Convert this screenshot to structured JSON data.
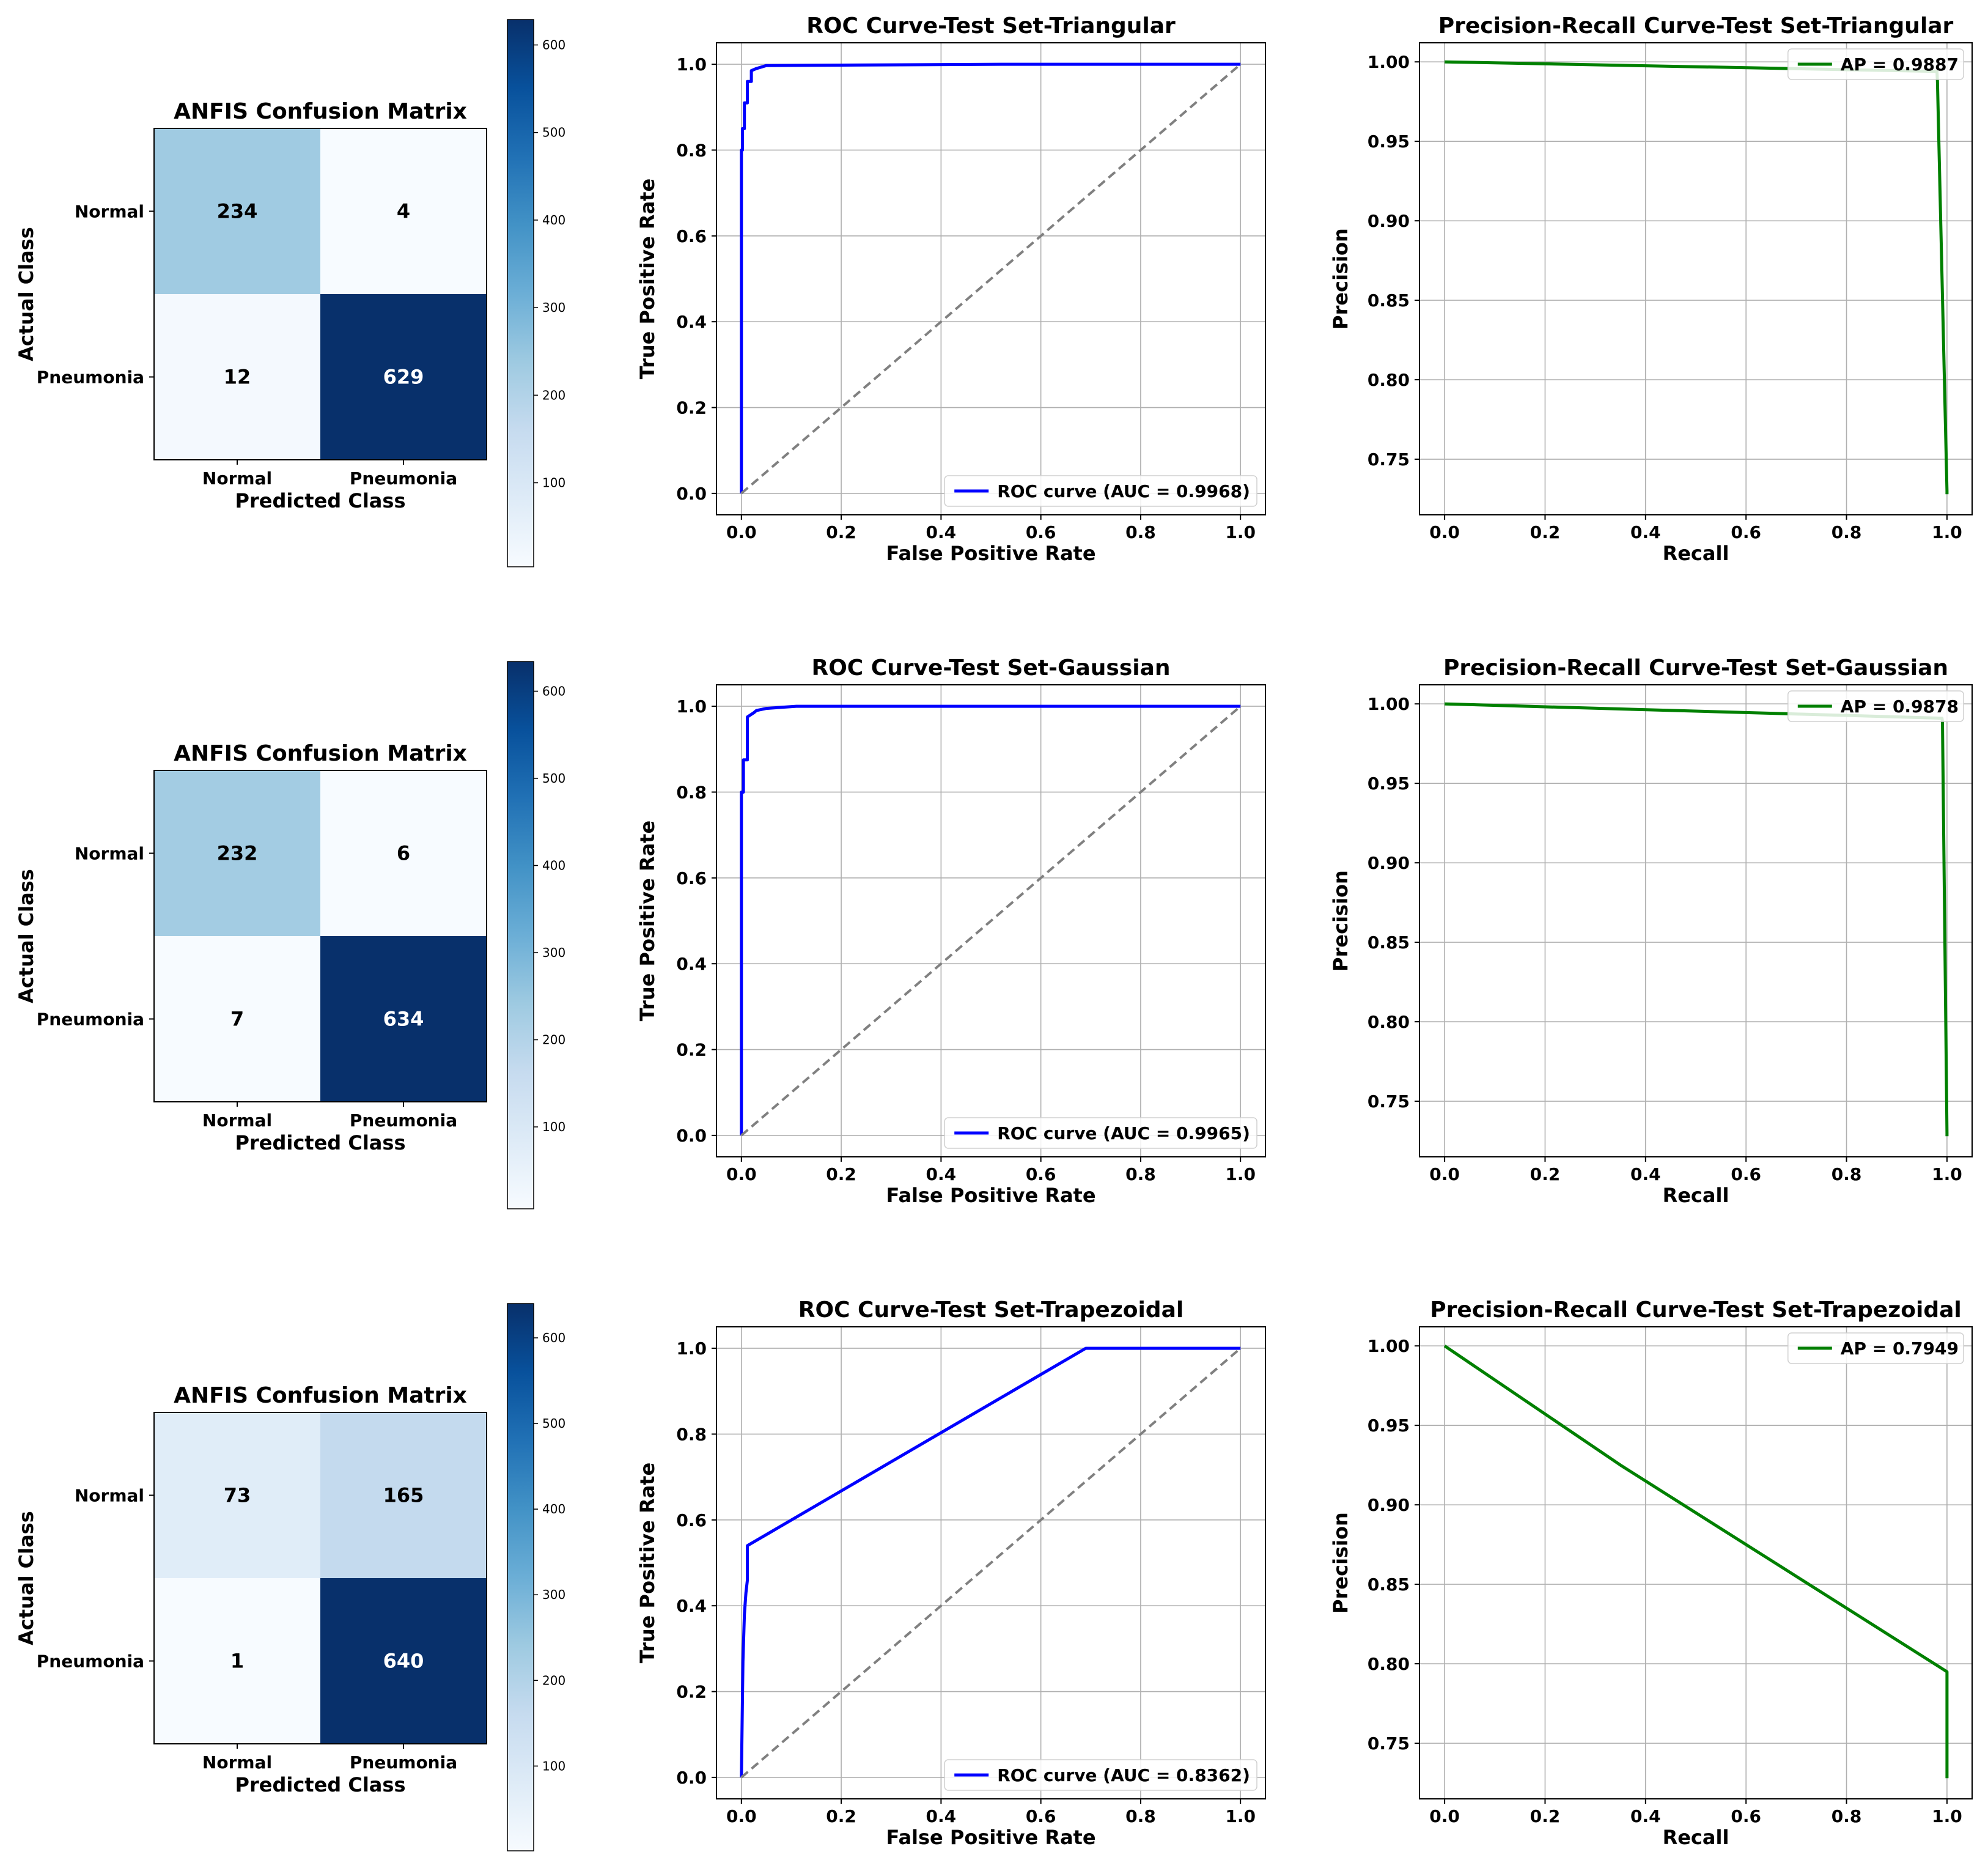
{
  "chart_data": [
    {
      "type": "heatmap",
      "panel": "confusion-triangular",
      "title": "ANFIS Confusion Matrix",
      "xlabel": "Predicted Class",
      "ylabel": "Actual Class",
      "x_categories": [
        "Normal",
        "Pneumonia"
      ],
      "y_categories": [
        "Normal",
        "Pneumonia"
      ],
      "matrix": [
        [
          234,
          4
        ],
        [
          12,
          629
        ]
      ],
      "colorbar": {
        "min": 4,
        "max": 629,
        "ticks": [
          100,
          200,
          300,
          400,
          500,
          600
        ]
      },
      "colormap": [
        "#f7fbff",
        "#deebf7",
        "#c6dbef",
        "#9ecae1",
        "#6baed6",
        "#4292c6",
        "#2171b5",
        "#08519c",
        "#08306b"
      ]
    },
    {
      "type": "line",
      "panel": "roc-triangular",
      "title": "ROC Curve-Test Set-Triangular",
      "xlabel": "False Positive Rate",
      "ylabel": "True Positive Rate",
      "xlim": [
        -0.05,
        1.05
      ],
      "ylim": [
        -0.05,
        1.05
      ],
      "xticks": [
        "0.0",
        "0.2",
        "0.4",
        "0.6",
        "0.8",
        "1.0"
      ],
      "yticks": [
        "0.0",
        "0.2",
        "0.4",
        "0.6",
        "0.8",
        "1.0"
      ],
      "grid": true,
      "legend_position": "lower-right",
      "series": [
        {
          "name": "ROC curve (AUC = 0.9968)",
          "color": "#0000ff",
          "x": [
            0,
            0,
            0.002,
            0.002,
            0.006,
            0.006,
            0.012,
            0.012,
            0.02,
            0.02,
            0.03,
            0.05,
            0.52,
            1.0
          ],
          "y": [
            0,
            0.8,
            0.8,
            0.85,
            0.85,
            0.91,
            0.91,
            0.96,
            0.96,
            0.985,
            0.99,
            0.997,
            1.0,
            1.0
          ]
        },
        {
          "name": "chance",
          "color": "#808080",
          "dashed": true,
          "x": [
            0,
            1
          ],
          "y": [
            0,
            1
          ]
        }
      ]
    },
    {
      "type": "line",
      "panel": "pr-triangular",
      "title": "Precision-Recall Curve-Test Set-Triangular",
      "xlabel": "Recall",
      "ylabel": "Precision",
      "xlim": [
        -0.05,
        1.05
      ],
      "ylim": [
        0.715,
        1.012
      ],
      "xticks": [
        "0.0",
        "0.2",
        "0.4",
        "0.6",
        "0.8",
        "1.0"
      ],
      "yticks": [
        "0.75",
        "0.80",
        "0.85",
        "0.90",
        "0.95",
        "1.00"
      ],
      "grid": true,
      "legend_position": "upper-right",
      "series": [
        {
          "name": "AP = 0.9887",
          "color": "#008000",
          "x": [
            0,
            0.98,
            0.981,
            1.0,
            1.0
          ],
          "y": [
            1.0,
            0.994,
            0.988,
            0.73,
            0.728
          ]
        }
      ]
    },
    {
      "type": "heatmap",
      "panel": "confusion-gaussian",
      "title": "ANFIS Confusion Matrix",
      "xlabel": "Predicted Class",
      "ylabel": "Actual Class",
      "x_categories": [
        "Normal",
        "Pneumonia"
      ],
      "y_categories": [
        "Normal",
        "Pneumonia"
      ],
      "matrix": [
        [
          232,
          6
        ],
        [
          7,
          634
        ]
      ],
      "colorbar": {
        "min": 6,
        "max": 634,
        "ticks": [
          100,
          200,
          300,
          400,
          500,
          600
        ]
      },
      "colormap": [
        "#f7fbff",
        "#deebf7",
        "#c6dbef",
        "#9ecae1",
        "#6baed6",
        "#4292c6",
        "#2171b5",
        "#08519c",
        "#08306b"
      ]
    },
    {
      "type": "line",
      "panel": "roc-gaussian",
      "title": "ROC Curve-Test Set-Gaussian",
      "xlabel": "False Positive Rate",
      "ylabel": "True Positive Rate",
      "xlim": [
        -0.05,
        1.05
      ],
      "ylim": [
        -0.05,
        1.05
      ],
      "xticks": [
        "0.0",
        "0.2",
        "0.4",
        "0.6",
        "0.8",
        "1.0"
      ],
      "yticks": [
        "0.0",
        "0.2",
        "0.4",
        "0.6",
        "0.8",
        "1.0"
      ],
      "grid": true,
      "legend_position": "lower-right",
      "series": [
        {
          "name": "ROC curve (AUC = 0.9965)",
          "color": "#0000ff",
          "x": [
            0,
            0,
            0.004,
            0.004,
            0.012,
            0.012,
            0.025,
            0.03,
            0.05,
            0.11,
            1.0
          ],
          "y": [
            0,
            0.8,
            0.8,
            0.875,
            0.875,
            0.975,
            0.985,
            0.99,
            0.995,
            1.0,
            1.0
          ]
        },
        {
          "name": "chance",
          "color": "#808080",
          "dashed": true,
          "x": [
            0,
            1
          ],
          "y": [
            0,
            1
          ]
        }
      ]
    },
    {
      "type": "line",
      "panel": "pr-gaussian",
      "title": "Precision-Recall Curve-Test Set-Gaussian",
      "xlabel": "Recall",
      "ylabel": "Precision",
      "xlim": [
        -0.05,
        1.05
      ],
      "ylim": [
        0.715,
        1.012
      ],
      "xticks": [
        "0.0",
        "0.2",
        "0.4",
        "0.6",
        "0.8",
        "1.0"
      ],
      "yticks": [
        "0.75",
        "0.80",
        "0.85",
        "0.90",
        "0.95",
        "1.00"
      ],
      "grid": true,
      "legend_position": "upper-right",
      "series": [
        {
          "name": "AP = 0.9878",
          "color": "#008000",
          "x": [
            0,
            0.99,
            0.991,
            1.0,
            1.0
          ],
          "y": [
            1.0,
            0.991,
            0.989,
            0.73,
            0.728
          ]
        }
      ]
    },
    {
      "type": "heatmap",
      "panel": "confusion-trapezoidal",
      "title": "ANFIS Confusion Matrix",
      "xlabel": "Predicted Class",
      "ylabel": "Actual Class",
      "x_categories": [
        "Normal",
        "Pneumonia"
      ],
      "y_categories": [
        "Normal",
        "Pneumonia"
      ],
      "matrix": [
        [
          73,
          165
        ],
        [
          1,
          640
        ]
      ],
      "colorbar": {
        "min": 1,
        "max": 640,
        "ticks": [
          100,
          200,
          300,
          400,
          500,
          600
        ]
      },
      "colormap": [
        "#f7fbff",
        "#deebf7",
        "#c6dbef",
        "#9ecae1",
        "#6baed6",
        "#4292c6",
        "#2171b5",
        "#08519c",
        "#08306b"
      ]
    },
    {
      "type": "line",
      "panel": "roc-trapezoidal",
      "title": "ROC Curve-Test Set-Trapezoidal",
      "xlabel": "False Positive Rate",
      "ylabel": "True Positive Rate",
      "xlim": [
        -0.05,
        1.05
      ],
      "ylim": [
        -0.05,
        1.05
      ],
      "xticks": [
        "0.0",
        "0.2",
        "0.4",
        "0.6",
        "0.8",
        "1.0"
      ],
      "yticks": [
        "0.0",
        "0.2",
        "0.4",
        "0.6",
        "0.8",
        "1.0"
      ],
      "grid": true,
      "legend_position": "lower-right",
      "series": [
        {
          "name": "ROC curve (AUC = 0.8362)",
          "color": "#0000ff",
          "x": [
            0,
            0.003,
            0.006,
            0.009,
            0.012,
            0.012,
            0.69,
            1.0
          ],
          "y": [
            0,
            0.27,
            0.38,
            0.43,
            0.46,
            0.54,
            1.0,
            1.0
          ]
        },
        {
          "name": "chance",
          "color": "#808080",
          "dashed": true,
          "x": [
            0,
            1
          ],
          "y": [
            0,
            1
          ]
        }
      ]
    },
    {
      "type": "line",
      "panel": "pr-trapezoidal",
      "title": "Precision-Recall Curve-Test Set-Trapezoidal",
      "xlabel": "Recall",
      "ylabel": "Precision",
      "xlim": [
        -0.05,
        1.05
      ],
      "ylim": [
        0.715,
        1.012
      ],
      "xticks": [
        "0.0",
        "0.2",
        "0.4",
        "0.6",
        "0.8",
        "1.0"
      ],
      "yticks": [
        "0.75",
        "0.80",
        "0.85",
        "0.90",
        "0.95",
        "1.00"
      ],
      "grid": true,
      "legend_position": "upper-right",
      "series": [
        {
          "name": "AP = 0.7949",
          "color": "#008000",
          "x": [
            0,
            0.35,
            0.7,
            1.0,
            1.0
          ],
          "y": [
            1.0,
            0.925,
            0.855,
            0.795,
            0.728
          ]
        }
      ]
    }
  ]
}
